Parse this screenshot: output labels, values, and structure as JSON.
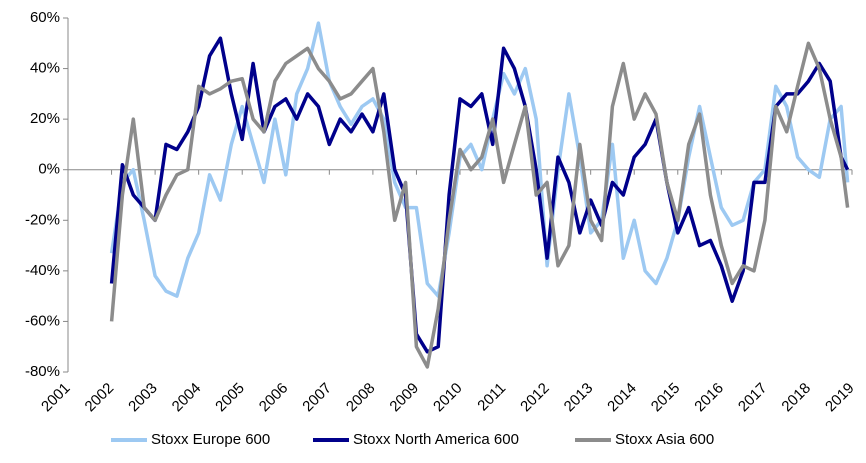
{
  "chart_data": {
    "type": "line",
    "x": [
      2002,
      2002.25,
      2002.5,
      2002.75,
      2003,
      2003.25,
      2003.5,
      2003.75,
      2004,
      2004.25,
      2004.5,
      2004.75,
      2005,
      2005.25,
      2005.5,
      2005.75,
      2006,
      2006.25,
      2006.5,
      2006.75,
      2007,
      2007.25,
      2007.5,
      2007.75,
      2008,
      2008.25,
      2008.5,
      2008.75,
      2009,
      2009.25,
      2009.5,
      2009.75,
      2010,
      2010.25,
      2010.5,
      2010.75,
      2011,
      2011.25,
      2011.5,
      2011.75,
      2012,
      2012.25,
      2012.5,
      2012.75,
      2013,
      2013.25,
      2013.5,
      2013.75,
      2014,
      2014.25,
      2014.5,
      2014.75,
      2015,
      2015.25,
      2015.5,
      2015.75,
      2016,
      2016.25,
      2016.5,
      2016.75,
      2017,
      2017.25,
      2017.5,
      2017.75,
      2018,
      2018.25,
      2018.5,
      2018.75,
      2018.9
    ],
    "series": [
      {
        "name": "Stoxx Europe 600",
        "color": "#9dc9f2",
        "values": [
          -33,
          -5,
          0,
          -20,
          -42,
          -48,
          -50,
          -35,
          -25,
          -2,
          -12,
          10,
          25,
          10,
          -5,
          20,
          -2,
          30,
          40,
          58,
          35,
          25,
          18,
          25,
          28,
          20,
          -5,
          -15,
          -15,
          -45,
          -50,
          -25,
          5,
          10,
          0,
          20,
          38,
          30,
          40,
          20,
          -38,
          0,
          30,
          5,
          -25,
          -20,
          10,
          -35,
          -20,
          -40,
          -45,
          -35,
          -20,
          5,
          25,
          5,
          -15,
          -22,
          -20,
          -5,
          0,
          33,
          25,
          5,
          0,
          -3,
          20,
          25,
          -5
        ]
      },
      {
        "name": "Stoxx North America 600",
        "color": "#00008b",
        "values": [
          -45,
          2,
          -10,
          -15,
          -20,
          10,
          8,
          15,
          25,
          45,
          52,
          30,
          12,
          42,
          15,
          25,
          28,
          20,
          30,
          25,
          10,
          20,
          15,
          22,
          15,
          30,
          0,
          -10,
          -65,
          -72,
          -70,
          -10,
          28,
          25,
          30,
          10,
          48,
          40,
          25,
          0,
          -35,
          5,
          -5,
          -25,
          -12,
          -22,
          -5,
          -10,
          5,
          10,
          20,
          -5,
          -25,
          -15,
          -30,
          -28,
          -38,
          -52,
          -40,
          -5,
          -5,
          25,
          30,
          30,
          35,
          42,
          35,
          5,
          0
        ]
      },
      {
        "name": "Stoxx Asia 600",
        "color": "#8c8c8c",
        "values": [
          -60,
          -10,
          20,
          -15,
          -20,
          -10,
          -2,
          0,
          33,
          30,
          32,
          35,
          36,
          20,
          15,
          35,
          42,
          45,
          48,
          40,
          35,
          28,
          30,
          35,
          40,
          15,
          -20,
          -5,
          -70,
          -78,
          -55,
          -20,
          8,
          0,
          5,
          20,
          -5,
          10,
          25,
          -10,
          -5,
          -38,
          -30,
          10,
          -20,
          -28,
          25,
          42,
          20,
          30,
          22,
          -5,
          -20,
          10,
          22,
          -10,
          -30,
          -45,
          -38,
          -40,
          -20,
          25,
          15,
          33,
          50,
          40,
          20,
          5,
          -15
        ]
      }
    ],
    "xlim": [
      2001,
      2019
    ],
    "xticks": [
      2001,
      2002,
      2003,
      2004,
      2005,
      2006,
      2007,
      2008,
      2009,
      2010,
      2011,
      2012,
      2013,
      2014,
      2015,
      2016,
      2017,
      2018,
      2019
    ],
    "ylim": [
      -80,
      60
    ],
    "yticks": [
      {
        "value": -80,
        "label": "-80%"
      },
      {
        "value": -60,
        "label": "-60%"
      },
      {
        "value": -40,
        "label": "-40%"
      },
      {
        "value": -20,
        "label": "-20%"
      },
      {
        "value": 0,
        "label": "0%"
      },
      {
        "value": 20,
        "label": "20%"
      },
      {
        "value": 40,
        "label": "40%"
      },
      {
        "value": 60,
        "label": "60%"
      }
    ],
    "legend": "bottom"
  }
}
